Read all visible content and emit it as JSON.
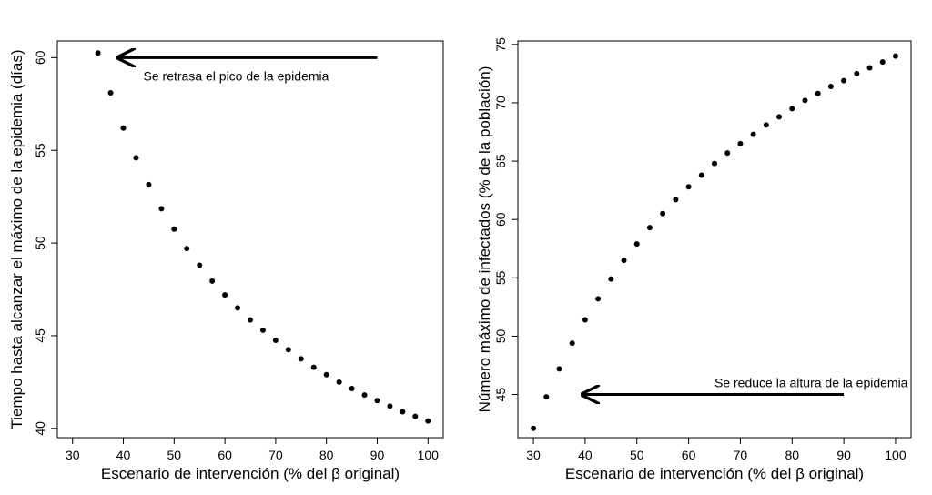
{
  "chart_data": [
    {
      "type": "scatter",
      "title": "",
      "xlabel": "Escenario de intervención (% del β original)",
      "ylabel": "Tiempo hasta alcanzar el máximo de la epidemia (días)",
      "xlim": [
        27,
        103
      ],
      "ylim": [
        39.5,
        60.9
      ],
      "xticks": [
        30,
        40,
        50,
        60,
        70,
        80,
        90,
        100
      ],
      "yticks": [
        40,
        45,
        50,
        55,
        60
      ],
      "grid": false,
      "color": "#000000",
      "x": [
        35,
        37.5,
        40,
        42.5,
        45,
        47.5,
        50,
        52.5,
        55,
        57.5,
        60,
        62.5,
        65,
        67.5,
        70,
        72.5,
        75,
        77.5,
        80,
        82.5,
        85,
        87.5,
        90,
        92.5,
        95,
        97.5,
        100
      ],
      "y": [
        60.25,
        58.1,
        56.2,
        54.6,
        53.15,
        51.85,
        50.75,
        49.7,
        48.8,
        47.95,
        47.2,
        46.5,
        45.85,
        45.3,
        44.75,
        44.25,
        43.75,
        43.3,
        42.9,
        42.5,
        42.15,
        41.8,
        41.5,
        41.2,
        40.9,
        40.65,
        40.4
      ],
      "annotation": {
        "text": "Se retrasa el pico de la epidemia",
        "arrow_from": [
          90,
          60
        ],
        "arrow_to": [
          39,
          60
        ],
        "text_at": [
          40,
          59
        ]
      }
    },
    {
      "type": "scatter",
      "title": "",
      "xlabel": "Escenario de intervención (% del β original)",
      "ylabel": "Número máximo de infectados (% de la población)",
      "xlim": [
        27,
        103
      ],
      "ylim": [
        41.3,
        75.3
      ],
      "xticks": [
        30,
        40,
        50,
        60,
        70,
        80,
        90,
        100
      ],
      "yticks": [
        45,
        50,
        55,
        60,
        65,
        70,
        75
      ],
      "grid": false,
      "color": "#000000",
      "x": [
        30,
        32.5,
        35,
        37.5,
        40,
        42.5,
        45,
        47.5,
        50,
        52.5,
        55,
        57.5,
        60,
        62.5,
        65,
        67.5,
        70,
        72.5,
        75,
        77.5,
        80,
        82.5,
        85,
        87.5,
        90,
        92.5,
        95,
        97.5,
        100
      ],
      "y": [
        42.1,
        44.8,
        47.2,
        49.4,
        51.4,
        53.2,
        54.9,
        56.5,
        57.9,
        59.3,
        60.5,
        61.7,
        62.8,
        63.8,
        64.8,
        65.7,
        66.5,
        67.3,
        68.1,
        68.8,
        69.5,
        70.2,
        70.8,
        71.4,
        71.9,
        72.5,
        73.0,
        73.5,
        74.0
      ],
      "annotation": {
        "text": "Se reduce la altura de la epidemia",
        "arrow_from": [
          90,
          45
        ],
        "arrow_to": [
          39.5,
          45
        ],
        "text_at": [
          65,
          46
        ]
      }
    }
  ]
}
